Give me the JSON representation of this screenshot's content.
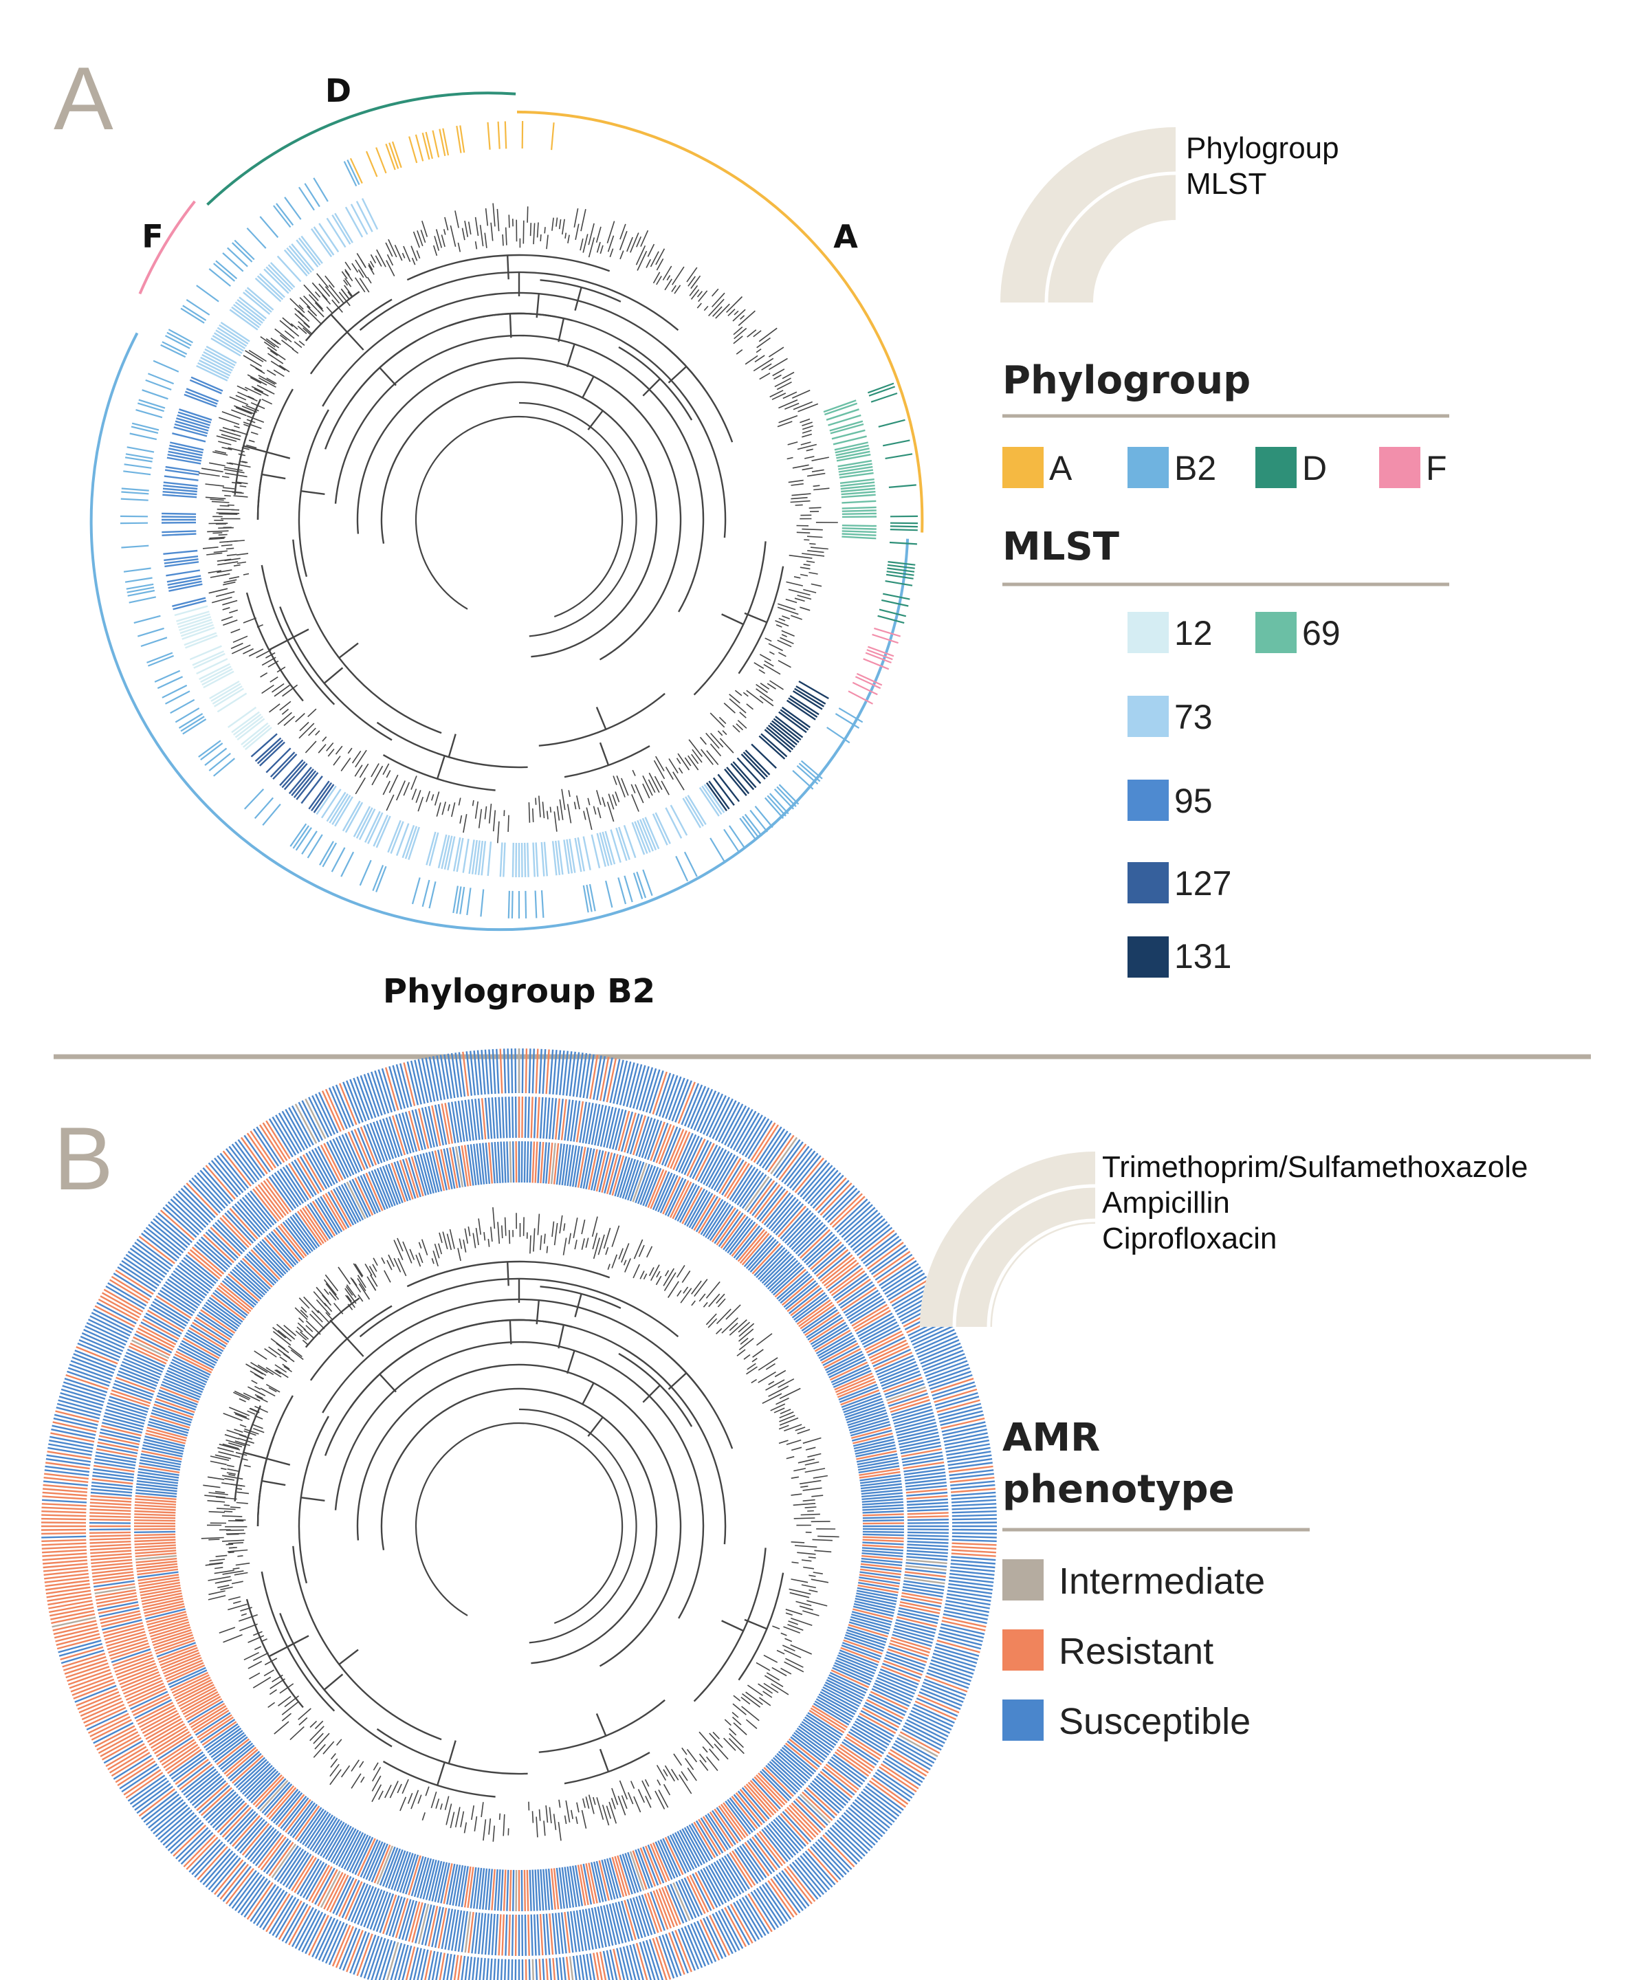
{
  "panel_a": {
    "letter": "A",
    "clade_labels": {
      "a": "A",
      "d": "D",
      "f": "F"
    },
    "bottom_label": "Phylogroup B2",
    "ring_key": [
      "Phylogroup",
      "MLST"
    ],
    "legend_phylogroup": {
      "title": "Phylogroup",
      "items": [
        {
          "label": "A",
          "color": "#f5b942"
        },
        {
          "label": "B2",
          "color": "#6fb3e0"
        },
        {
          "label": "D",
          "color": "#2e9078"
        },
        {
          "label": "F",
          "color": "#f28fab"
        }
      ]
    },
    "legend_mlst": {
      "title": "MLST",
      "items": [
        {
          "label": "12",
          "color": "#d5edf3"
        },
        {
          "label": "69",
          "color": "#6bbfa5"
        },
        {
          "label": "73",
          "color": "#a6d2f0"
        },
        {
          "label": "95",
          "color": "#4e8ad0"
        },
        {
          "label": "127",
          "color": "#36609c"
        },
        {
          "label": "131",
          "color": "#1a3c63"
        }
      ]
    }
  },
  "panel_b": {
    "letter": "B",
    "ring_key": [
      "Trimethoprim/Sulfamethoxazole",
      "Ampicillin",
      "Ciprofloxacin"
    ],
    "legend": {
      "title_line1": "AMR",
      "title_line2": "phenotype",
      "items": [
        {
          "label": "Intermediate",
          "color": "#b5aca0"
        },
        {
          "label": "Resistant",
          "color": "#f0845c"
        },
        {
          "label": "Susceptible",
          "color": "#4a86cc"
        }
      ]
    }
  },
  "colors": {
    "panel_letter": "#b5aca0",
    "divider": "#b5aca0",
    "ring_key_fill": "#ebe6dc",
    "tree": "#444444"
  }
}
